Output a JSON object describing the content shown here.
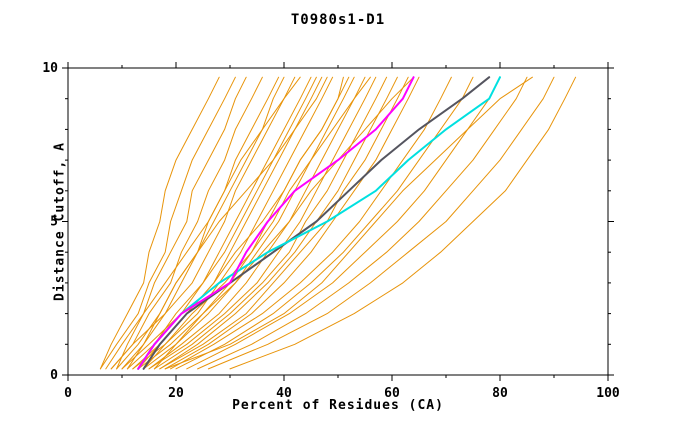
{
  "chart_data": {
    "type": "line",
    "title": "T0980s1-D1",
    "xlabel": "Percent of Residues (CA)",
    "ylabel": "Distance Cutoff, A",
    "xlim": [
      0,
      100
    ],
    "ylim": [
      0,
      10
    ],
    "x_major_ticks": [
      0,
      20,
      40,
      60,
      80,
      100
    ],
    "x_minor_ticks": [
      10,
      30,
      50,
      70,
      90
    ],
    "y_major_ticks": [
      0,
      5,
      10
    ],
    "y_minor_ticks": [
      1,
      2,
      3,
      4,
      6,
      7,
      8,
      9
    ],
    "grid": false,
    "legend": "none",
    "axis_color": "#000000",
    "model_series_color": "#e8940a",
    "series_y_levels": [
      0.2,
      1,
      2,
      3,
      4,
      5,
      6,
      7,
      8,
      9,
      9.7
    ],
    "model_series": [
      [
        6,
        8,
        11,
        14,
        15,
        17,
        18,
        20,
        23,
        26,
        28
      ],
      [
        6,
        9,
        13,
        15,
        18,
        19,
        21,
        23,
        26,
        29,
        31
      ],
      [
        7,
        10,
        14,
        16,
        19,
        22,
        23,
        26,
        29,
        31,
        33
      ],
      [
        8,
        12,
        15,
        19,
        21,
        24,
        26,
        29,
        31,
        34,
        36
      ],
      [
        9,
        13,
        17,
        20,
        24,
        26,
        29,
        31,
        34,
        37,
        39
      ],
      [
        10,
        14,
        18,
        23,
        26,
        29,
        31,
        34,
        37,
        40,
        42
      ],
      [
        11,
        16,
        20,
        25,
        28,
        31,
        34,
        37,
        40,
        43,
        45
      ],
      [
        12,
        17,
        22,
        27,
        30,
        33,
        36,
        39,
        42,
        45,
        47
      ],
      [
        12,
        18,
        24,
        28,
        32,
        35,
        38,
        41,
        44,
        47,
        49
      ],
      [
        13,
        19,
        25,
        30,
        34,
        37,
        40,
        43,
        47,
        50,
        51
      ],
      [
        14,
        20,
        26,
        31,
        35,
        39,
        42,
        45,
        48,
        51,
        53
      ],
      [
        15,
        21,
        28,
        33,
        37,
        41,
        44,
        47,
        50,
        53,
        55
      ],
      [
        15,
        22,
        29,
        35,
        39,
        43,
        46,
        49,
        52,
        55,
        57
      ],
      [
        16,
        23,
        30,
        36,
        41,
        44,
        48,
        51,
        54,
        57,
        59
      ],
      [
        17,
        24,
        31,
        37,
        42,
        46,
        50,
        53,
        56,
        59,
        61
      ],
      [
        17,
        25,
        33,
        38,
        43,
        48,
        51,
        55,
        58,
        61,
        63
      ],
      [
        18,
        26,
        34,
        40,
        45,
        49,
        53,
        57,
        60,
        63,
        65
      ],
      [
        19,
        27,
        36,
        43,
        49,
        54,
        58,
        62,
        66,
        69,
        71
      ],
      [
        20,
        29,
        38,
        45,
        51,
        56,
        61,
        65,
        69,
        73,
        75
      ],
      [
        22,
        31,
        41,
        49,
        55,
        61,
        66,
        70,
        74,
        78,
        80
      ],
      [
        24,
        34,
        44,
        52,
        59,
        65,
        70,
        75,
        79,
        83,
        85
      ],
      [
        26,
        37,
        48,
        56,
        63,
        70,
        75,
        80,
        84,
        88,
        90
      ],
      [
        30,
        42,
        53,
        62,
        69,
        75,
        81,
        85,
        89,
        92,
        94
      ],
      [
        8,
        12,
        18,
        21,
        24,
        27,
        30,
        33,
        36,
        38,
        40
      ],
      [
        10,
        15,
        21,
        25,
        29,
        32,
        35,
        38,
        41,
        44,
        46
      ],
      [
        13,
        17,
        22,
        27,
        31,
        36,
        40,
        43,
        47,
        50,
        52
      ],
      [
        9,
        11,
        14,
        18,
        22,
        26,
        29,
        32,
        36,
        40,
        43
      ],
      [
        11,
        14,
        17,
        20,
        24,
        28,
        33,
        38,
        42,
        46,
        48
      ],
      [
        14,
        18,
        23,
        29,
        34,
        38,
        41,
        45,
        49,
        53,
        56
      ],
      [
        16,
        20,
        25,
        31,
        36,
        41,
        45,
        50,
        55,
        60,
        64
      ],
      [
        18,
        30,
        40,
        47,
        52,
        57,
        62,
        68,
        74,
        80,
        86
      ]
    ],
    "highlight_series": [
      {
        "name": "reference-curve-gray",
        "color": "#55555f",
        "width": 2,
        "x": [
          14,
          17,
          22,
          30,
          38,
          46,
          52,
          58,
          65,
          73,
          78
        ]
      },
      {
        "name": "reference-curve-cyan",
        "color": "#00e0e0",
        "width": 2,
        "x": [
          13,
          16,
          21,
          28,
          37,
          48,
          57,
          63,
          70,
          78,
          80
        ]
      },
      {
        "name": "reference-curve-magenta",
        "color": "#ff00ff",
        "width": 2,
        "x": [
          13,
          16,
          21,
          30,
          33,
          37,
          42,
          50,
          57,
          62,
          64
        ]
      }
    ]
  }
}
